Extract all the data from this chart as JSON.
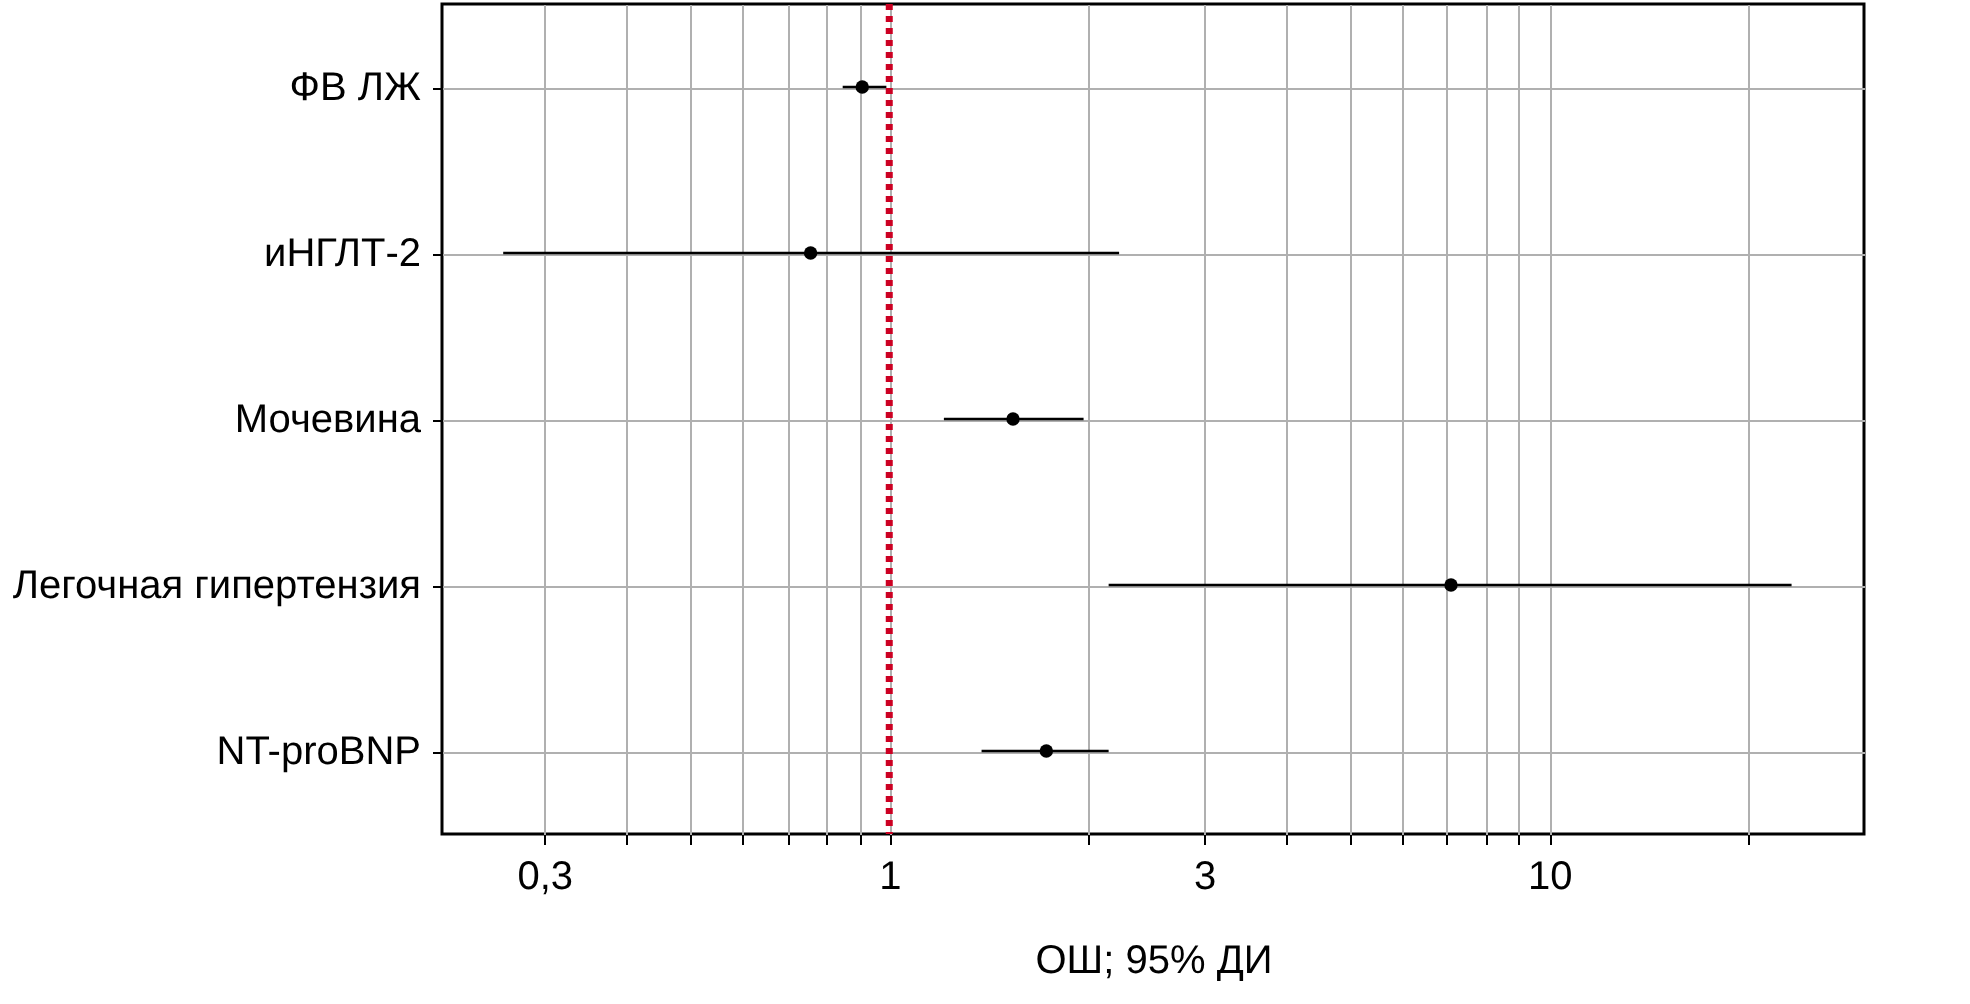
{
  "chart_data": {
    "type": "scatter",
    "orientation": "horizontal",
    "xlabel": "ОШ; 95% ДИ",
    "categories": [
      "ФВ ЛЖ",
      "иНГЛТ-2",
      "Мочевина",
      "Легочная гипертензия",
      "NT-proBNP"
    ],
    "color": "#000000",
    "values": [
      0.91,
      0.76,
      1.54,
      7.1,
      1.73
    ],
    "errors": [
      [
        0.85,
        0.99
      ],
      [
        0.26,
        2.23
      ],
      [
        1.21,
        1.97
      ],
      [
        2.15,
        23.3
      ],
      [
        1.38,
        2.15
      ]
    ],
    "log": "x",
    "xlim": [
      0.21,
      30
    ],
    "xticks": [
      {
        "value": 0.3,
        "label": "0,3"
      },
      {
        "value": 0.4,
        "label": null
      },
      {
        "value": 0.5,
        "label": null
      },
      {
        "value": 0.6,
        "label": null
      },
      {
        "value": 0.7,
        "label": null
      },
      {
        "value": 0.8,
        "label": null
      },
      {
        "value": 0.9,
        "label": null
      },
      1,
      {
        "value": 2,
        "label": null
      },
      3,
      {
        "value": 4,
        "label": null
      },
      {
        "value": 5,
        "label": null
      },
      {
        "value": 6,
        "label": null
      },
      {
        "value": 7,
        "label": null
      },
      {
        "value": 8,
        "label": null
      },
      {
        "value": 9,
        "label": null
      },
      10,
      {
        "value": 20,
        "label": null
      }
    ],
    "ref_lines": [
      {
        "axis": "x",
        "value": 1,
        "color": "#cc0022",
        "line_style": "dotted"
      }
    ],
    "grid": true,
    "marker": "circle"
  }
}
